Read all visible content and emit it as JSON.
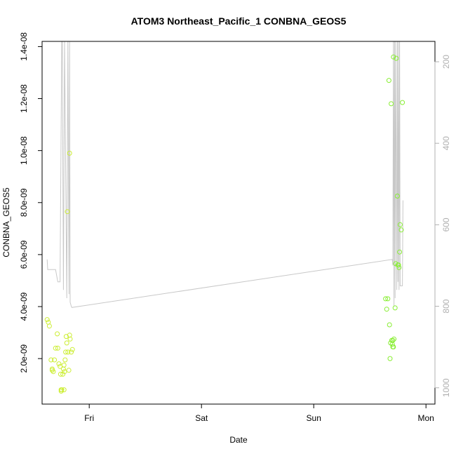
{
  "chart_data": {
    "type": "scatter",
    "title": "ATOM3 Northeast_Pacific_1 CONBNA_GEOS5",
    "xlabel": "Date",
    "ylabel": "CONBNA_GEOS5",
    "x_unit": "days",
    "xlim": [
      -0.42,
      3.08
    ],
    "ylim": [
      2.5e-10,
      1.42e-08
    ],
    "x_ticks": [
      {
        "value": 0,
        "label": "Fri"
      },
      {
        "value": 1,
        "label": "Sat"
      },
      {
        "value": 2,
        "label": "Sun"
      },
      {
        "value": 3,
        "label": "Mon"
      }
    ],
    "y_ticks": [
      {
        "value": 2e-09,
        "label": "2.0e-09"
      },
      {
        "value": 4e-09,
        "label": "4.0e-09"
      },
      {
        "value": 6e-09,
        "label": "6.0e-09"
      },
      {
        "value": 8e-09,
        "label": "8.0e-09"
      },
      {
        "value": 1e-08,
        "label": "1.0e-08"
      },
      {
        "value": 1.2e-08,
        "label": "1.2e-08"
      },
      {
        "value": 1.4e-08,
        "label": "1.4e-08"
      }
    ],
    "y2lim": [
      1040,
      150
    ],
    "y2_ticks": [
      {
        "value": 200,
        "label": "200"
      },
      {
        "value": 400,
        "label": "400"
      },
      {
        "value": 600,
        "label": "600"
      },
      {
        "value": 800,
        "label": "800"
      },
      {
        "value": 1000,
        "label": "1000"
      }
    ],
    "grid": false,
    "legend": "none",
    "colors": {
      "points_early": "#ccee33",
      "points_late": "#88ee33",
      "pressure_line": "#c8c8c8",
      "right_axis": "#b0b0b0"
    },
    "series": [
      {
        "type": "scatter",
        "points": [
          [
            -0.375,
            3.5e-09
          ],
          [
            -0.365,
            3.4e-09
          ],
          [
            -0.355,
            3.25e-09
          ],
          [
            -0.33,
            1.55e-09
          ],
          [
            -0.32,
            1.5e-09
          ],
          [
            -0.31,
            1.95e-09
          ],
          [
            -0.3,
            2.4e-09
          ],
          [
            -0.285,
            2.95e-09
          ],
          [
            -0.28,
            2.4e-09
          ],
          [
            -0.27,
            1.8e-09
          ],
          [
            -0.26,
            1.7e-09
          ],
          [
            -0.255,
            1.4e-09
          ],
          [
            -0.25,
            7.5e-10
          ],
          [
            -0.245,
            8e-10
          ],
          [
            -0.235,
            1.4e-09
          ],
          [
            -0.23,
            1.6e-09
          ],
          [
            -0.225,
            1.75e-09
          ],
          [
            -0.22,
            1.5e-09
          ],
          [
            -0.215,
            1.95e-09
          ],
          [
            -0.205,
            2.85e-09
          ],
          [
            -0.2,
            2.6e-09
          ],
          [
            -0.19,
            2.25e-09
          ],
          [
            -0.182,
            1.55e-09
          ],
          [
            -0.175,
            2.9e-09
          ],
          [
            -0.17,
            2.75e-09
          ],
          [
            -0.16,
            2.25e-09
          ],
          [
            -0.15,
            2.35e-09
          ],
          [
            -0.34,
            1.95e-09
          ],
          [
            -0.21,
            2.25e-09
          ],
          [
            -0.195,
            7.65e-09
          ],
          [
            -0.175,
            9.9e-09
          ],
          [
            -0.33,
            1.6e-09
          ],
          [
            -0.25,
            8e-10
          ],
          [
            -0.225,
            8e-10
          ]
        ]
      },
      {
        "type": "scatter",
        "points": [
          [
            2.64,
            4.3e-09
          ],
          [
            2.65,
            3.9e-09
          ],
          [
            2.66,
            4.3e-09
          ],
          [
            2.67,
            1.27e-08
          ],
          [
            2.675,
            3.3e-09
          ],
          [
            2.68,
            2e-09
          ],
          [
            2.685,
            2.6e-09
          ],
          [
            2.69,
            1.18e-08
          ],
          [
            2.695,
            2.7e-09
          ],
          [
            2.7,
            2.55e-09
          ],
          [
            2.705,
            2.45e-09
          ],
          [
            2.71,
            2.45e-09
          ],
          [
            2.715,
            2.75e-09
          ],
          [
            2.725,
            3.95e-09
          ],
          [
            2.73,
            5.65e-09
          ],
          [
            2.745,
            8.25e-09
          ],
          [
            2.75,
            5.6e-09
          ],
          [
            2.755,
            5.6e-09
          ],
          [
            2.76,
            5.5e-09
          ],
          [
            2.765,
            6.1e-09
          ],
          [
            2.77,
            7.15e-09
          ],
          [
            2.78,
            6.95e-09
          ],
          [
            2.79,
            1.185e-08
          ],
          [
            2.71,
            1.36e-08
          ],
          [
            2.735,
            1.355e-08
          ],
          [
            2.705,
            2.7e-09
          ]
        ]
      },
      {
        "type": "line",
        "axis": "right",
        "points": [
          [
            -0.375,
            685
          ],
          [
            -0.37,
            710
          ],
          [
            -0.3,
            710
          ],
          [
            -0.28,
            740
          ],
          [
            -0.26,
            740
          ],
          [
            -0.245,
            150
          ],
          [
            -0.24,
            150
          ],
          [
            -0.23,
            760
          ],
          [
            -0.22,
            150
          ],
          [
            -0.2,
            780
          ],
          [
            -0.19,
            150
          ],
          [
            -0.18,
            770
          ],
          [
            -0.175,
            150
          ],
          [
            -0.17,
            790
          ],
          [
            -0.16,
            800
          ],
          [
            -0.155,
            803
          ],
          [
            2.7,
            685
          ],
          [
            2.705,
            700
          ],
          [
            2.71,
            150
          ],
          [
            2.715,
            800
          ],
          [
            2.72,
            150
          ],
          [
            2.725,
            780
          ],
          [
            2.73,
            150
          ],
          [
            2.74,
            760
          ],
          [
            2.745,
            150
          ],
          [
            2.75,
            740
          ],
          [
            2.755,
            150
          ],
          [
            2.76,
            760
          ],
          [
            2.765,
            150
          ],
          [
            2.77,
            750
          ],
          [
            2.775,
            750
          ],
          [
            2.79,
            750
          ],
          [
            2.795,
            540
          ]
        ]
      }
    ]
  }
}
